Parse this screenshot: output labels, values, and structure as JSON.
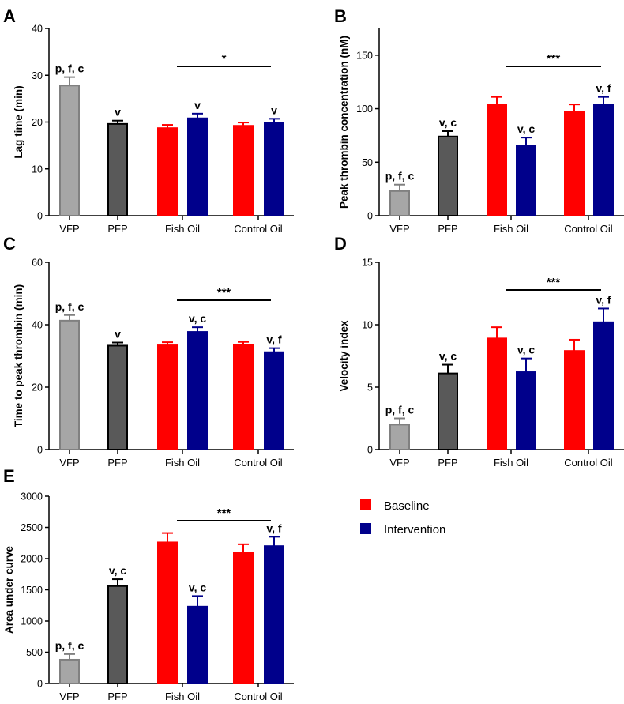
{
  "legend": {
    "baseline": {
      "label": "Baseline",
      "color": "#ff0000"
    },
    "intervention": {
      "label": "Intervention",
      "color": "#00008b"
    }
  },
  "colors": {
    "vfp": "#a6a6a6",
    "pfp": "#595959",
    "edge_vfp": "#808080",
    "edge_pfp": "#000000",
    "baseline": "#ff0000",
    "intervention": "#00008b"
  },
  "chart_data": [
    {
      "id": "A",
      "type": "bar",
      "panel": "A",
      "ylabel": "Lag time (min)",
      "ylim": [
        0,
        40
      ],
      "yticks": [
        0,
        10,
        20,
        30,
        40
      ],
      "categories": [
        "VFP",
        "PFP",
        "Fish Oil",
        "Control Oil"
      ],
      "bars": [
        {
          "group": "VFP",
          "series": "vfp",
          "value": 27.8,
          "err": 1.8,
          "label": "p, f, c"
        },
        {
          "group": "PFP",
          "series": "pfp",
          "value": 19.6,
          "err": 0.7,
          "label": "v"
        },
        {
          "group": "Fish Oil",
          "series": "baseline",
          "value": 18.7,
          "err": 0.7,
          "label": ""
        },
        {
          "group": "Fish Oil",
          "series": "intervention",
          "value": 20.8,
          "err": 1.0,
          "label": "v"
        },
        {
          "group": "Control Oil",
          "series": "baseline",
          "value": 19.2,
          "err": 0.7,
          "label": ""
        },
        {
          "group": "Control Oil",
          "series": "intervention",
          "value": 19.9,
          "err": 0.8,
          "label": "v"
        }
      ],
      "significance": "*"
    },
    {
      "id": "B",
      "type": "bar",
      "panel": "B",
      "ylabel": "Peak thrombin concentration (nM)",
      "ylim": [
        0,
        175
      ],
      "yticks": [
        0,
        50,
        100,
        150
      ],
      "categories": [
        "VFP",
        "PFP",
        "Fish Oil",
        "Control Oil"
      ],
      "bars": [
        {
          "group": "VFP",
          "series": "vfp",
          "value": 23,
          "err": 6,
          "label": "p, f, c"
        },
        {
          "group": "PFP",
          "series": "pfp",
          "value": 74,
          "err": 5,
          "label": "v, c"
        },
        {
          "group": "Fish Oil",
          "series": "baseline",
          "value": 104,
          "err": 7,
          "label": ""
        },
        {
          "group": "Fish Oil",
          "series": "intervention",
          "value": 65,
          "err": 8,
          "label": "v, c"
        },
        {
          "group": "Control Oil",
          "series": "baseline",
          "value": 97,
          "err": 7,
          "label": ""
        },
        {
          "group": "Control Oil",
          "series": "intervention",
          "value": 104,
          "err": 7,
          "label": "v, f"
        }
      ],
      "significance": "***"
    },
    {
      "id": "C",
      "type": "bar",
      "panel": "C",
      "ylabel": "Time to peak thrombin (min)",
      "ylim": [
        0,
        60
      ],
      "yticks": [
        0,
        20,
        40,
        60
      ],
      "categories": [
        "VFP",
        "PFP",
        "Fish Oil",
        "Control Oil"
      ],
      "bars": [
        {
          "group": "VFP",
          "series": "vfp",
          "value": 41.3,
          "err": 1.8,
          "label": "p, f, c"
        },
        {
          "group": "PFP",
          "series": "pfp",
          "value": 33.3,
          "err": 1.0,
          "label": "v"
        },
        {
          "group": "Fish Oil",
          "series": "baseline",
          "value": 33.4,
          "err": 1.0,
          "label": ""
        },
        {
          "group": "Fish Oil",
          "series": "intervention",
          "value": 37.7,
          "err": 1.5,
          "label": "v, c"
        },
        {
          "group": "Control Oil",
          "series": "baseline",
          "value": 33.5,
          "err": 1.0,
          "label": ""
        },
        {
          "group": "Control Oil",
          "series": "intervention",
          "value": 31.2,
          "err": 1.3,
          "label": "v, f"
        }
      ],
      "significance": "***"
    },
    {
      "id": "D",
      "type": "bar",
      "panel": "D",
      "ylabel": "Velocity index",
      "ylim": [
        0,
        15
      ],
      "yticks": [
        0,
        5,
        10,
        15
      ],
      "categories": [
        "VFP",
        "PFP",
        "Fish Oil",
        "Control Oil"
      ],
      "bars": [
        {
          "group": "VFP",
          "series": "vfp",
          "value": 2.0,
          "err": 0.5,
          "label": "p, f, c"
        },
        {
          "group": "PFP",
          "series": "pfp",
          "value": 6.1,
          "err": 0.7,
          "label": "v, c"
        },
        {
          "group": "Fish Oil",
          "series": "baseline",
          "value": 8.9,
          "err": 0.9,
          "label": ""
        },
        {
          "group": "Fish Oil",
          "series": "intervention",
          "value": 6.2,
          "err": 1.1,
          "label": "v, c"
        },
        {
          "group": "Control Oil",
          "series": "baseline",
          "value": 7.9,
          "err": 0.9,
          "label": ""
        },
        {
          "group": "Control Oil",
          "series": "intervention",
          "value": 10.2,
          "err": 1.1,
          "label": "v, f"
        }
      ],
      "significance": "***"
    },
    {
      "id": "E",
      "type": "bar",
      "panel": "E",
      "ylabel": "Area under curve",
      "ylim": [
        0,
        3000
      ],
      "yticks": [
        0,
        500,
        1000,
        1500,
        2000,
        2500,
        3000
      ],
      "categories": [
        "VFP",
        "PFP",
        "Fish Oil",
        "Control Oil"
      ],
      "bars": [
        {
          "group": "VFP",
          "series": "vfp",
          "value": 380,
          "err": 90,
          "label": "p, f, c"
        },
        {
          "group": "PFP",
          "series": "pfp",
          "value": 1560,
          "err": 110,
          "label": "v, c"
        },
        {
          "group": "Fish Oil",
          "series": "baseline",
          "value": 2260,
          "err": 150,
          "label": ""
        },
        {
          "group": "Fish Oil",
          "series": "intervention",
          "value": 1230,
          "err": 170,
          "label": "v, c"
        },
        {
          "group": "Control Oil",
          "series": "baseline",
          "value": 2090,
          "err": 140,
          "label": ""
        },
        {
          "group": "Control Oil",
          "series": "intervention",
          "value": 2200,
          "err": 150,
          "label": "v, f"
        }
      ],
      "significance": "***"
    }
  ]
}
